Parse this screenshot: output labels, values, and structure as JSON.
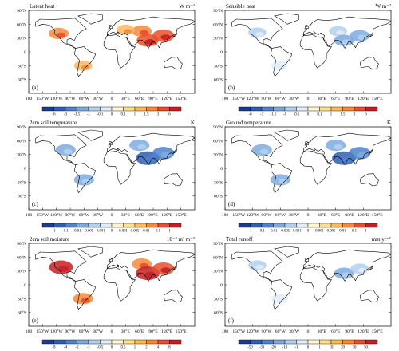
{
  "figure": {
    "lon_ticks": [
      "180",
      "150°W",
      "120°W",
      "90°W",
      "60°W",
      "30°W",
      "0",
      "30°E",
      "60°E",
      "90°E",
      "120°E",
      "150°E"
    ],
    "lat_ticks": [
      "90°N",
      "60°N",
      "30°N",
      "0",
      "30°S",
      "60°S"
    ],
    "warm_colors": [
      "#fff6d0",
      "#ffe08a",
      "#fdb95e",
      "#f58a3c",
      "#e6502a",
      "#c42024"
    ],
    "cool_colors": [
      "#1b3c8c",
      "#2f5eb3",
      "#4f82cc",
      "#7eaadf",
      "#b3d0ef",
      "#e1ecf8"
    ],
    "zero_color": "#ffffff"
  },
  "chart_data": [
    {
      "type": "heatmap",
      "panel": "(a)",
      "title": "Latent heat",
      "units": "W m⁻²",
      "colorbar_levels": [
        "-6",
        "-3",
        "-1.5",
        "-1",
        "-0.1",
        "0",
        "0.1",
        "1",
        "1.5",
        "3",
        "6"
      ],
      "hotspots": [
        {
          "region": "western North America",
          "lon": -115,
          "lat": 40,
          "level": 3
        },
        {
          "region": "central Asia",
          "lon": 65,
          "lat": 45,
          "level": 3
        },
        {
          "region": "Europe",
          "lon": 30,
          "lat": 48,
          "level": 2
        },
        {
          "region": "India",
          "lon": 78,
          "lat": 25,
          "level": 4
        },
        {
          "region": "eastern China",
          "lon": 112,
          "lat": 35,
          "level": 4
        },
        {
          "region": "southern South America",
          "lon": -62,
          "lat": -30,
          "level": 2
        }
      ]
    },
    {
      "type": "heatmap",
      "panel": "(b)",
      "title": "Sensible heat",
      "units": "W m⁻²",
      "colorbar_levels": [
        "-6",
        "-3",
        "-1.5",
        "-1",
        "-0.1",
        "0",
        "0.1",
        "1",
        "1.5",
        "3",
        "6"
      ],
      "hotspots": [
        {
          "region": "western North America",
          "lon": -110,
          "lat": 42,
          "level": -2
        },
        {
          "region": "central Asia",
          "lon": 65,
          "lat": 45,
          "level": -2
        },
        {
          "region": "India",
          "lon": 78,
          "lat": 25,
          "level": -3
        },
        {
          "region": "eastern China",
          "lon": 112,
          "lat": 35,
          "level": -3
        },
        {
          "region": "southern South America",
          "lon": -62,
          "lat": -30,
          "level": -1
        }
      ]
    },
    {
      "type": "heatmap",
      "panel": "(c)",
      "title": "2cm soil temperature",
      "units": "K",
      "colorbar_levels": [
        "-1",
        "-0.1",
        "-0.01",
        "-0.005",
        "-0.001",
        "0",
        "0.001",
        "0.005",
        "0.01",
        "0.1",
        "1"
      ],
      "hotspots": [
        {
          "region": "North America",
          "lon": -100,
          "lat": 40,
          "level": -3
        },
        {
          "region": "Eurasia",
          "lon": 60,
          "lat": 50,
          "level": -3
        },
        {
          "region": "India",
          "lon": 78,
          "lat": 22,
          "level": -5
        },
        {
          "region": "eastern China",
          "lon": 112,
          "lat": 33,
          "level": -4
        },
        {
          "region": "South America",
          "lon": -60,
          "lat": -25,
          "level": -3
        }
      ]
    },
    {
      "type": "heatmap",
      "panel": "(d)",
      "title": "Ground temperature",
      "units": "K",
      "colorbar_levels": [
        "-1",
        "-0.1",
        "-0.01",
        "-0.005",
        "-0.001",
        "0",
        "0.001",
        "0.005",
        "0.01",
        "0.1",
        "1"
      ],
      "hotspots": [
        {
          "region": "North America",
          "lon": -100,
          "lat": 40,
          "level": -3
        },
        {
          "region": "Eurasia",
          "lon": 60,
          "lat": 50,
          "level": -3
        },
        {
          "region": "India",
          "lon": 78,
          "lat": 22,
          "level": -5
        },
        {
          "region": "eastern China",
          "lon": 112,
          "lat": 33,
          "level": -4
        },
        {
          "region": "South America",
          "lon": -60,
          "lat": -25,
          "level": -3
        }
      ]
    },
    {
      "type": "heatmap",
      "panel": "(e)",
      "title": "2cm soil moisture",
      "units": "10⁻³ m³ m⁻³",
      "colorbar_levels": [
        "-8",
        "-4",
        "-2",
        "-1",
        "-0.5",
        "0",
        "0.5",
        "1",
        "2",
        "4",
        "8"
      ],
      "hotspots": [
        {
          "region": "western North America",
          "lon": -110,
          "lat": 38,
          "level": 5
        },
        {
          "region": "central Asia",
          "lon": 65,
          "lat": 45,
          "level": 3
        },
        {
          "region": "India",
          "lon": 78,
          "lat": 25,
          "level": 5
        },
        {
          "region": "eastern China",
          "lon": 112,
          "lat": 35,
          "level": 4
        },
        {
          "region": "southern South America",
          "lon": -62,
          "lat": -30,
          "level": 3
        }
      ]
    },
    {
      "type": "heatmap",
      "panel": "(f)",
      "title": "Total runoff",
      "units": "mm yr⁻¹",
      "colorbar_levels": [
        "-50",
        "-30",
        "-20",
        "-10",
        "-1",
        "0",
        "1",
        "10",
        "20",
        "30",
        "50"
      ],
      "hotspots": [
        {
          "region": "western North America",
          "lon": -110,
          "lat": 42,
          "level": -2
        },
        {
          "region": "India",
          "lon": 78,
          "lat": 25,
          "level": -3
        },
        {
          "region": "eastern China",
          "lon": 112,
          "lat": 35,
          "level": -2
        },
        {
          "region": "southern South America",
          "lon": -62,
          "lat": -30,
          "level": -1
        }
      ]
    }
  ]
}
